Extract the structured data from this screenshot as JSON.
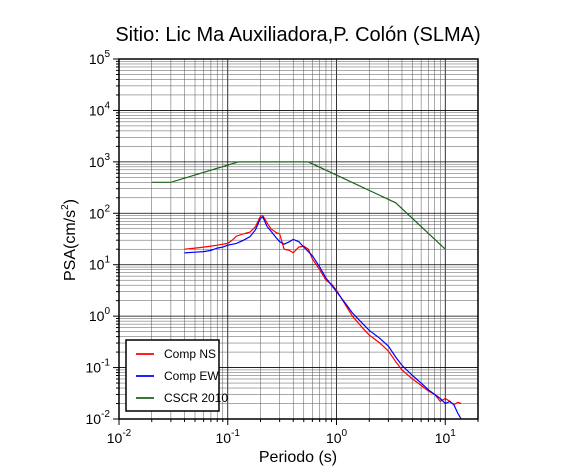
{
  "chart_data": {
    "type": "line",
    "title": "Sitio: Lic Ma Auxiliadora,P. Colón (SLMA)",
    "xlabel": "Periodo (s)",
    "ylabel": "PSA(cm/s²)",
    "ylabel_base": "PSA(cm/s",
    "ylabel_exp": "2",
    "ylabel_end": ")",
    "x_scale": "log",
    "y_scale": "log",
    "xlim": [
      0.01,
      20
    ],
    "ylim": [
      0.01,
      100000
    ],
    "grid": true,
    "legend_position": "bottom-left",
    "x_ticks": [
      {
        "value": 0.01,
        "base": "10",
        "exp": "-2"
      },
      {
        "value": 0.1,
        "base": "10",
        "exp": "-1"
      },
      {
        "value": 1,
        "base": "10",
        "exp": "0"
      },
      {
        "value": 10,
        "base": "10",
        "exp": "1"
      }
    ],
    "y_ticks": [
      {
        "value": 0.01,
        "base": "10",
        "exp": "-2"
      },
      {
        "value": 0.1,
        "base": "10",
        "exp": "-1"
      },
      {
        "value": 1,
        "base": "10",
        "exp": "0"
      },
      {
        "value": 10,
        "base": "10",
        "exp": "1"
      },
      {
        "value": 100,
        "base": "10",
        "exp": "2"
      },
      {
        "value": 1000,
        "base": "10",
        "exp": "3"
      },
      {
        "value": 10000,
        "base": "10",
        "exp": "4"
      },
      {
        "value": 100000,
        "base": "10",
        "exp": "5"
      }
    ],
    "series": [
      {
        "name": "Comp NS",
        "color": "#ff0000",
        "points": [
          [
            0.04,
            20
          ],
          [
            0.05,
            21
          ],
          [
            0.06,
            22
          ],
          [
            0.07,
            23
          ],
          [
            0.08,
            24
          ],
          [
            0.09,
            25
          ],
          [
            0.1,
            26
          ],
          [
            0.11,
            30
          ],
          [
            0.12,
            36
          ],
          [
            0.14,
            40
          ],
          [
            0.16,
            43
          ],
          [
            0.18,
            55
          ],
          [
            0.2,
            88
          ],
          [
            0.21,
            90
          ],
          [
            0.23,
            65
          ],
          [
            0.25,
            50
          ],
          [
            0.28,
            42
          ],
          [
            0.3,
            40
          ],
          [
            0.33,
            20
          ],
          [
            0.37,
            19
          ],
          [
            0.4,
            17
          ],
          [
            0.45,
            22
          ],
          [
            0.5,
            23
          ],
          [
            0.55,
            20
          ],
          [
            0.6,
            13
          ],
          [
            0.7,
            8
          ],
          [
            0.8,
            5
          ],
          [
            0.9,
            4.2
          ],
          [
            1.0,
            3.2
          ],
          [
            1.2,
            1.7
          ],
          [
            1.4,
            1.0
          ],
          [
            1.7,
            0.62
          ],
          [
            2.0,
            0.43
          ],
          [
            2.5,
            0.3
          ],
          [
            3.0,
            0.21
          ],
          [
            3.5,
            0.13
          ],
          [
            4.0,
            0.09
          ],
          [
            5.0,
            0.06
          ],
          [
            6.0,
            0.045
          ],
          [
            7.0,
            0.035
          ],
          [
            8.0,
            0.03
          ],
          [
            9.0,
            0.022
          ],
          [
            10.0,
            0.025
          ],
          [
            11.0,
            0.022
          ],
          [
            12.0,
            0.019
          ],
          [
            13.0,
            0.021
          ],
          [
            14.0,
            0.02
          ]
        ]
      },
      {
        "name": "Comp EW",
        "color": "#0000ff",
        "points": [
          [
            0.04,
            17
          ],
          [
            0.05,
            17.5
          ],
          [
            0.06,
            18
          ],
          [
            0.07,
            19
          ],
          [
            0.08,
            21
          ],
          [
            0.09,
            22
          ],
          [
            0.1,
            24
          ],
          [
            0.12,
            26
          ],
          [
            0.14,
            30
          ],
          [
            0.16,
            35
          ],
          [
            0.18,
            48
          ],
          [
            0.2,
            80
          ],
          [
            0.21,
            85
          ],
          [
            0.23,
            55
          ],
          [
            0.25,
            45
          ],
          [
            0.28,
            33
          ],
          [
            0.3,
            28
          ],
          [
            0.33,
            25
          ],
          [
            0.37,
            28
          ],
          [
            0.4,
            31
          ],
          [
            0.45,
            28
          ],
          [
            0.5,
            22
          ],
          [
            0.55,
            18
          ],
          [
            0.6,
            15
          ],
          [
            0.7,
            9
          ],
          [
            0.8,
            5.5
          ],
          [
            0.9,
            4.0
          ],
          [
            1.0,
            3.0
          ],
          [
            1.2,
            1.8
          ],
          [
            1.4,
            1.15
          ],
          [
            1.7,
            0.75
          ],
          [
            2.0,
            0.53
          ],
          [
            2.5,
            0.37
          ],
          [
            3.0,
            0.26
          ],
          [
            3.5,
            0.16
          ],
          [
            4.0,
            0.11
          ],
          [
            5.0,
            0.07
          ],
          [
            6.0,
            0.05
          ],
          [
            7.0,
            0.037
          ],
          [
            8.0,
            0.03
          ],
          [
            9.0,
            0.025
          ],
          [
            10.0,
            0.02
          ],
          [
            11.0,
            0.022
          ],
          [
            12.0,
            0.019
          ],
          [
            13.0,
            0.013
          ],
          [
            14.0,
            0.01
          ]
        ]
      },
      {
        "name": "CSCR 2010",
        "color": "#1a661a",
        "points": [
          [
            0.02,
            400
          ],
          [
            0.03,
            400
          ],
          [
            0.125,
            1000
          ],
          [
            0.55,
            1000
          ],
          [
            3.5,
            160
          ],
          [
            10,
            20
          ]
        ]
      }
    ]
  }
}
